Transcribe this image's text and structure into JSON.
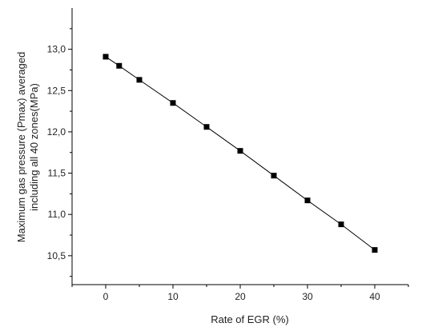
{
  "chart_data": {
    "type": "line",
    "title": "",
    "xlabel": "Rate of EGR (%)",
    "ylabel_lines": [
      "Maximum gas pressure (Pmax) averaged",
      "including all 40 zones(MPa)"
    ],
    "xlim": [
      -5,
      45
    ],
    "ylim": [
      10.15,
      13.5
    ],
    "x_ticks": [
      0,
      10,
      20,
      30,
      40
    ],
    "x_tick_labels": [
      "0",
      "10",
      "20",
      "30",
      "40"
    ],
    "y_ticks": [
      10.5,
      11.0,
      11.5,
      12.0,
      12.5,
      13.0
    ],
    "y_tick_labels": [
      "10,5",
      "11,0",
      "11,5",
      "12,0",
      "12,5",
      "13,0"
    ],
    "grid": false,
    "legend": "none",
    "marker": "square",
    "series": [
      {
        "color": "#000000",
        "x": [
          0,
          2,
          5,
          10,
          15,
          20,
          25,
          30,
          35,
          40
        ],
        "y": [
          12.91,
          12.8,
          12.63,
          12.35,
          12.06,
          11.77,
          11.47,
          11.17,
          10.88,
          10.57
        ]
      }
    ]
  }
}
